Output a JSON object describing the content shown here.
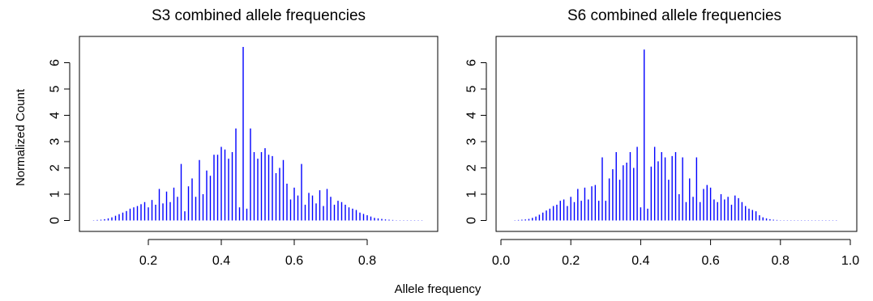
{
  "figure": {
    "xlabel": "Allele frequency",
    "ylabel": "Normalized Count"
  },
  "chart_data": [
    {
      "type": "bar",
      "style": "histogram-spikes",
      "title": "S3 combined allele frequencies",
      "xlim": [
        0.04,
        0.96
      ],
      "ylim": [
        0,
        6.6
      ],
      "xticks": [
        0.2,
        0.4,
        0.6,
        0.8
      ],
      "xtick_labels": [
        "0.2",
        "0.4",
        "0.6",
        "0.8"
      ],
      "yticks": [
        0,
        1,
        2,
        3,
        4,
        5,
        6
      ],
      "ytick_labels": [
        "0",
        "1",
        "2",
        "3",
        "4",
        "5",
        "6"
      ],
      "color": "#0000ff",
      "x": [
        0.05,
        0.06,
        0.07,
        0.08,
        0.09,
        0.1,
        0.11,
        0.12,
        0.13,
        0.14,
        0.15,
        0.16,
        0.17,
        0.18,
        0.19,
        0.2,
        0.21,
        0.22,
        0.23,
        0.24,
        0.25,
        0.26,
        0.27,
        0.28,
        0.29,
        0.3,
        0.31,
        0.32,
        0.33,
        0.34,
        0.35,
        0.36,
        0.37,
        0.38,
        0.39,
        0.4,
        0.41,
        0.42,
        0.43,
        0.44,
        0.45,
        0.46,
        0.47,
        0.48,
        0.49,
        0.5,
        0.51,
        0.52,
        0.53,
        0.54,
        0.55,
        0.56,
        0.57,
        0.58,
        0.59,
        0.6,
        0.61,
        0.62,
        0.63,
        0.64,
        0.65,
        0.66,
        0.67,
        0.68,
        0.69,
        0.7,
        0.71,
        0.72,
        0.73,
        0.74,
        0.75,
        0.76,
        0.77,
        0.78,
        0.79,
        0.8,
        0.81,
        0.82,
        0.83,
        0.84,
        0.85,
        0.86,
        0.87,
        0.88,
        0.89,
        0.9,
        0.91,
        0.92,
        0.93,
        0.94,
        0.95
      ],
      "values": [
        0.01,
        0.02,
        0.03,
        0.05,
        0.08,
        0.12,
        0.18,
        0.24,
        0.3,
        0.36,
        0.45,
        0.5,
        0.55,
        0.62,
        0.7,
        0.5,
        0.78,
        0.6,
        1.2,
        0.65,
        1.1,
        0.7,
        1.25,
        0.9,
        2.15,
        0.35,
        1.3,
        1.6,
        0.9,
        2.3,
        1.0,
        1.9,
        1.7,
        2.5,
        2.5,
        2.8,
        2.7,
        2.35,
        2.6,
        3.5,
        0.5,
        6.6,
        0.45,
        3.5,
        2.6,
        2.35,
        2.6,
        2.75,
        2.5,
        2.45,
        1.8,
        2.0,
        2.3,
        1.4,
        0.8,
        1.25,
        0.95,
        2.15,
        0.6,
        1.05,
        0.95,
        0.65,
        1.15,
        0.55,
        1.2,
        0.9,
        0.6,
        0.75,
        0.7,
        0.6,
        0.5,
        0.45,
        0.4,
        0.3,
        0.25,
        0.2,
        0.15,
        0.1,
        0.08,
        0.06,
        0.04,
        0.03,
        0.02,
        0.01,
        0.01,
        0.01,
        0.01,
        0.01,
        0.01,
        0.01,
        0.01
      ]
    },
    {
      "type": "bar",
      "style": "histogram-spikes",
      "title": "S6 combined allele frequencies",
      "xlim": [
        0.0,
        1.0
      ],
      "ylim": [
        0,
        6.6
      ],
      "xticks": [
        0.0,
        0.2,
        0.4,
        0.6,
        0.8,
        1.0
      ],
      "xtick_labels": [
        "0.0",
        "0.2",
        "0.4",
        "0.6",
        "0.8",
        "1.0"
      ],
      "yticks": [
        0,
        1,
        2,
        3,
        4,
        5,
        6
      ],
      "ytick_labels": [
        "0",
        "1",
        "2",
        "3",
        "4",
        "5",
        "6"
      ],
      "color": "#0000ff",
      "x": [
        0.04,
        0.05,
        0.06,
        0.07,
        0.08,
        0.09,
        0.1,
        0.11,
        0.12,
        0.13,
        0.14,
        0.15,
        0.16,
        0.17,
        0.18,
        0.19,
        0.2,
        0.21,
        0.22,
        0.23,
        0.24,
        0.25,
        0.26,
        0.27,
        0.28,
        0.29,
        0.3,
        0.31,
        0.32,
        0.33,
        0.34,
        0.35,
        0.36,
        0.37,
        0.38,
        0.39,
        0.4,
        0.41,
        0.42,
        0.43,
        0.44,
        0.45,
        0.46,
        0.47,
        0.48,
        0.49,
        0.5,
        0.51,
        0.52,
        0.53,
        0.54,
        0.55,
        0.56,
        0.57,
        0.58,
        0.59,
        0.6,
        0.61,
        0.62,
        0.63,
        0.64,
        0.65,
        0.66,
        0.67,
        0.68,
        0.69,
        0.7,
        0.71,
        0.72,
        0.73,
        0.74,
        0.75,
        0.76,
        0.77,
        0.78,
        0.79,
        0.8,
        0.81,
        0.82,
        0.83,
        0.84,
        0.85,
        0.86,
        0.87,
        0.88,
        0.89,
        0.9,
        0.91,
        0.92,
        0.93,
        0.94,
        0.95,
        0.96
      ],
      "values": [
        0.01,
        0.02,
        0.03,
        0.04,
        0.06,
        0.1,
        0.15,
        0.22,
        0.3,
        0.38,
        0.45,
        0.55,
        0.6,
        0.75,
        0.8,
        0.55,
        0.9,
        0.7,
        1.2,
        0.75,
        1.25,
        0.8,
        1.3,
        1.35,
        0.75,
        2.4,
        0.75,
        1.6,
        1.95,
        2.6,
        1.55,
        2.1,
        2.2,
        2.6,
        2.0,
        2.8,
        0.5,
        6.5,
        0.45,
        2.05,
        2.8,
        2.25,
        2.6,
        2.4,
        1.55,
        2.45,
        2.6,
        1.0,
        2.4,
        0.7,
        1.6,
        0.9,
        2.4,
        0.7,
        1.2,
        1.35,
        1.25,
        0.8,
        0.7,
        1.0,
        0.8,
        0.9,
        0.6,
        0.95,
        0.85,
        0.7,
        0.55,
        0.45,
        0.4,
        0.35,
        0.2,
        0.12,
        0.08,
        0.05,
        0.03,
        0.02,
        0.01,
        0.01,
        0.01,
        0.01,
        0.01,
        0.01,
        0.01,
        0.01,
        0.01,
        0.01,
        0.01,
        0.01,
        0.01,
        0.01,
        0.01,
        0.01,
        0.01
      ]
    }
  ]
}
